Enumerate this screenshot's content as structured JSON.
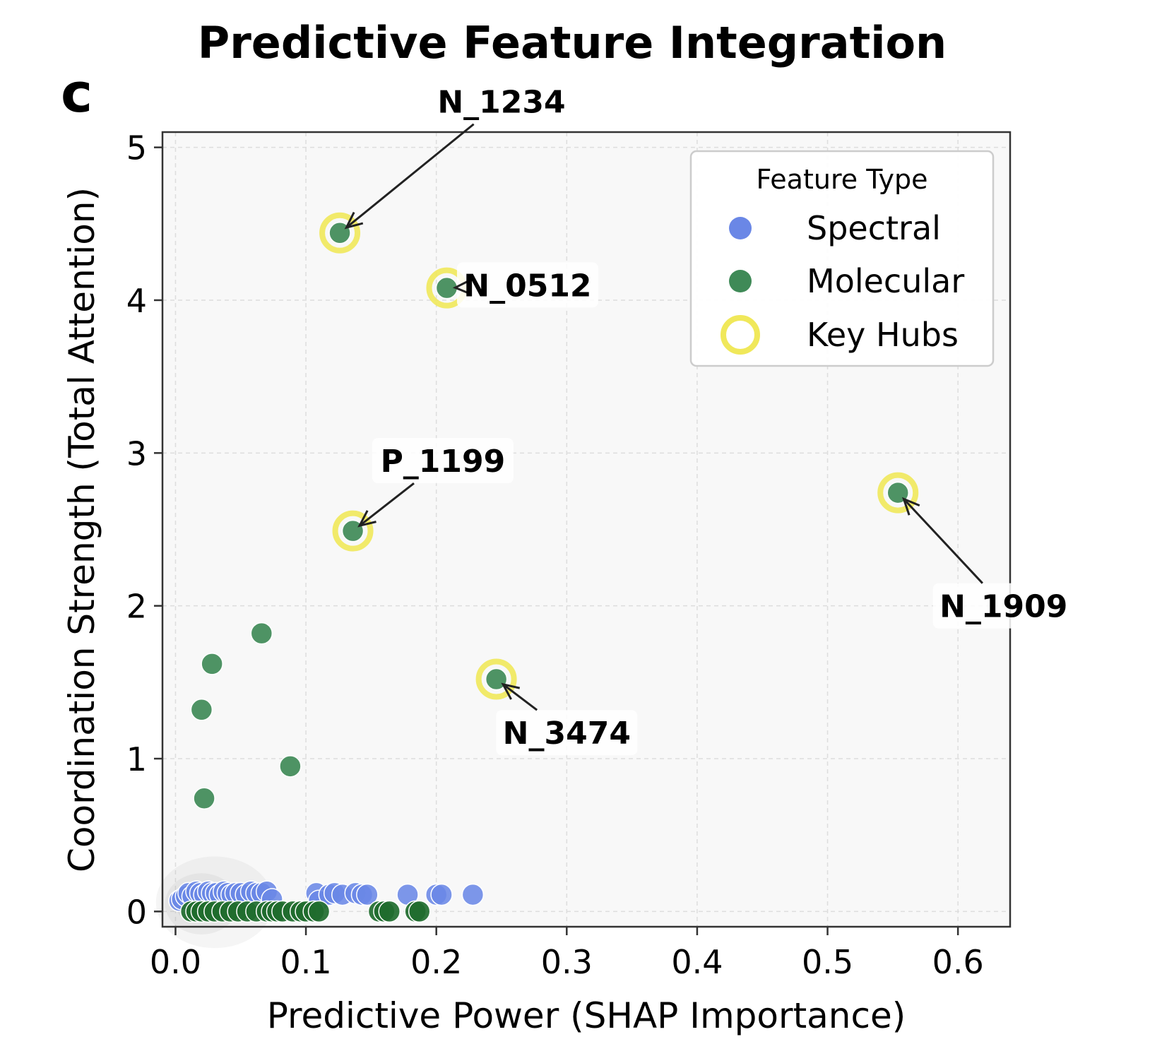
{
  "chart_data": {
    "type": "scatter",
    "title": "Predictive Feature Integration",
    "panel_label": "c",
    "xlabel": "Predictive Power (SHAP Importance)",
    "ylabel": "Coordination Strength (Total Attention)",
    "xlim": [
      -0.01,
      0.64
    ],
    "ylim": [
      -0.1,
      5.1
    ],
    "xticks": [
      "0.0",
      "0.1",
      "0.2",
      "0.3",
      "0.4",
      "0.5",
      "0.6"
    ],
    "yticks": [
      "0",
      "1",
      "2",
      "3",
      "4",
      "5"
    ],
    "grid": true,
    "legend": {
      "title": "Feature Type",
      "position": "top-right",
      "entries": [
        "Spectral",
        "Molecular",
        "Key Hubs"
      ]
    },
    "colors": {
      "spectral": "#6a87e6",
      "molecular": "#3f8a57",
      "key_hub_ring": "#f0e85a",
      "plot_bg": "#f8f8f8"
    },
    "series": [
      {
        "name": "Spectral",
        "points": [
          [
            0.003,
            0.07
          ],
          [
            0.005,
            0.08
          ],
          [
            0.008,
            0.1
          ],
          [
            0.01,
            0.12
          ],
          [
            0.013,
            0.1
          ],
          [
            0.016,
            0.13
          ],
          [
            0.019,
            0.12
          ],
          [
            0.022,
            0.11
          ],
          [
            0.025,
            0.13
          ],
          [
            0.028,
            0.12
          ],
          [
            0.031,
            0.12
          ],
          [
            0.034,
            0.11
          ],
          [
            0.037,
            0.13
          ],
          [
            0.04,
            0.12
          ],
          [
            0.043,
            0.11
          ],
          [
            0.046,
            0.12
          ],
          [
            0.05,
            0.12
          ],
          [
            0.054,
            0.11
          ],
          [
            0.058,
            0.13
          ],
          [
            0.062,
            0.12
          ],
          [
            0.066,
            0.12
          ],
          [
            0.07,
            0.13
          ],
          [
            0.074,
            0.08
          ],
          [
            0.108,
            0.12
          ],
          [
            0.11,
            0.07
          ],
          [
            0.118,
            0.11
          ],
          [
            0.122,
            0.12
          ],
          [
            0.128,
            0.11
          ],
          [
            0.138,
            0.12
          ],
          [
            0.143,
            0.11
          ],
          [
            0.147,
            0.11
          ],
          [
            0.178,
            0.11
          ],
          [
            0.2,
            0.11
          ],
          [
            0.204,
            0.11
          ],
          [
            0.228,
            0.11
          ]
        ]
      },
      {
        "name": "Molecular",
        "points": [
          [
            0.126,
            4.44
          ],
          [
            0.208,
            4.08
          ],
          [
            0.136,
            2.49
          ],
          [
            0.554,
            2.74
          ],
          [
            0.246,
            1.52
          ],
          [
            0.066,
            1.82
          ],
          [
            0.028,
            1.62
          ],
          [
            0.02,
            1.32
          ],
          [
            0.088,
            0.95
          ],
          [
            0.022,
            0.74
          ],
          [
            0.012,
            0.0
          ],
          [
            0.016,
            0.0
          ],
          [
            0.02,
            0.0
          ],
          [
            0.025,
            0.0
          ],
          [
            0.03,
            0.0
          ],
          [
            0.036,
            0.0
          ],
          [
            0.042,
            0.0
          ],
          [
            0.048,
            0.0
          ],
          [
            0.055,
            0.0
          ],
          [
            0.062,
            0.0
          ],
          [
            0.07,
            0.0
          ],
          [
            0.074,
            0.0
          ],
          [
            0.078,
            0.0
          ],
          [
            0.082,
            0.0
          ],
          [
            0.09,
            0.0
          ],
          [
            0.096,
            0.0
          ],
          [
            0.1,
            0.0
          ],
          [
            0.106,
            0.0
          ],
          [
            0.11,
            0.0
          ],
          [
            0.156,
            0.0
          ],
          [
            0.16,
            0.0
          ],
          [
            0.164,
            0.0
          ],
          [
            0.184,
            0.0
          ],
          [
            0.187,
            0.0
          ]
        ]
      }
    ],
    "key_hubs": [
      {
        "label": "N_1234",
        "x": 0.126,
        "y": 4.44,
        "text_x": 0.25,
        "text_y": 5.3
      },
      {
        "label": "N_0512",
        "x": 0.208,
        "y": 4.08,
        "text_x": 0.27,
        "text_y": 4.1
      },
      {
        "label": "P_1199",
        "x": 0.136,
        "y": 2.49,
        "text_x": 0.205,
        "text_y": 2.95
      },
      {
        "label": "N_1909",
        "x": 0.554,
        "y": 2.74,
        "text_x": 0.635,
        "text_y": 2.0
      },
      {
        "label": "N_3474",
        "x": 0.246,
        "y": 1.52,
        "text_x": 0.3,
        "text_y": 1.17
      }
    ]
  }
}
